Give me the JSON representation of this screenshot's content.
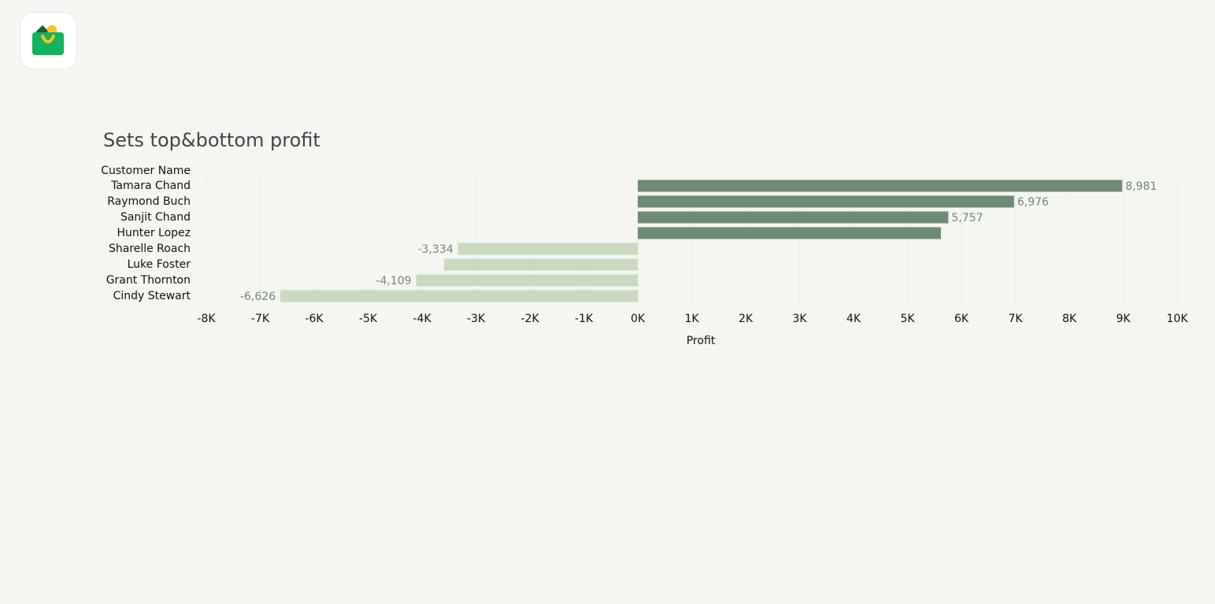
{
  "chart_data": {
    "type": "bar",
    "orientation": "horizontal",
    "title": "Sets top&bottom profit",
    "y_label": "Customer Name",
    "x_label": "Profit",
    "categories": [
      "Tamara Chand",
      "Raymond Buch",
      "Sanjit Chand",
      "Hunter Lopez",
      "Sharelle Roach",
      "Luke Foster",
      "Grant Thornton",
      "Cindy Stewart"
    ],
    "values": [
      8981,
      6976,
      5757,
      5620,
      -3334,
      -3590,
      -4109,
      -6626
    ],
    "value_labels": [
      "8,981",
      "6,976",
      "5,757",
      null,
      "-3,334",
      null,
      "-4,109",
      "-6,626"
    ],
    "colors": [
      "#6e8b74",
      "#6e8b74",
      "#6e8b74",
      "#6e8b74",
      "#c9dac0",
      "#c9dac0",
      "#c9dac0",
      "#c9dac0"
    ],
    "xlim": [
      -8000,
      10000
    ],
    "xticks": [
      {
        "value": -8000,
        "label": "-8K"
      },
      {
        "value": -7000,
        "label": "-7K"
      },
      {
        "value": -6000,
        "label": "-6K"
      },
      {
        "value": -5000,
        "label": "-5K"
      },
      {
        "value": -4000,
        "label": "-4K"
      },
      {
        "value": -3000,
        "label": "-3K"
      },
      {
        "value": -2000,
        "label": "-2K"
      },
      {
        "value": -1000,
        "label": "-1K"
      },
      {
        "value": 0,
        "label": "0K"
      },
      {
        "value": 1000,
        "label": "1K"
      },
      {
        "value": 2000,
        "label": "2K"
      },
      {
        "value": 3000,
        "label": "3K"
      },
      {
        "value": 4000,
        "label": "4K"
      },
      {
        "value": 5000,
        "label": "5K"
      },
      {
        "value": 6000,
        "label": "6K"
      },
      {
        "value": 7000,
        "label": "7K"
      },
      {
        "value": 8000,
        "label": "8K"
      },
      {
        "value": 9000,
        "label": "9K"
      },
      {
        "value": 10000,
        "label": "10K"
      }
    ],
    "grid": true
  }
}
